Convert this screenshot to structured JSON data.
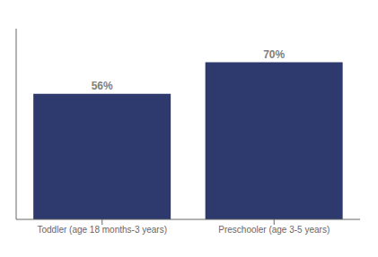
{
  "chart_data": {
    "type": "bar",
    "categories": [
      "Toddler (age 18 months-3 years)",
      "Preschooler (age 3-5 years)"
    ],
    "values": [
      56,
      70
    ],
    "value_labels": [
      "56%",
      "70%"
    ],
    "data_labels": true,
    "color": "#2E3A6E",
    "ylim": [
      0,
      85
    ],
    "tick_labels": "x"
  }
}
